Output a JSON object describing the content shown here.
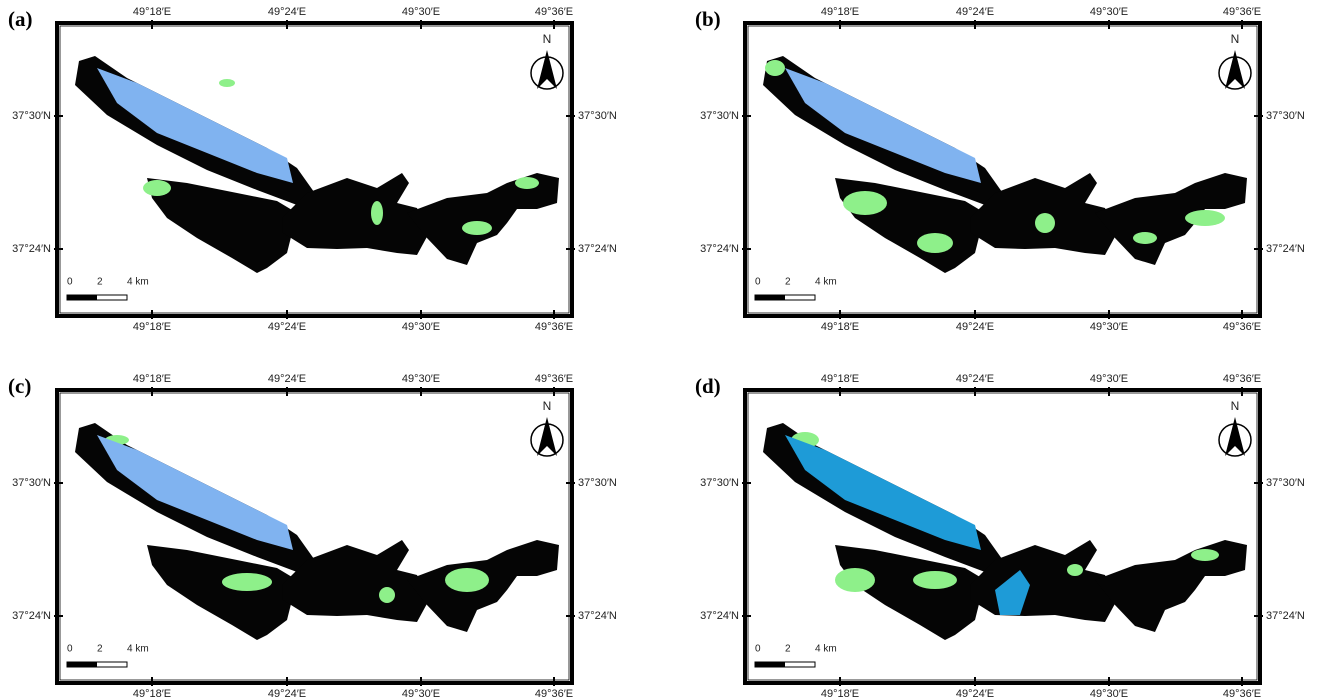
{
  "panels": [
    {
      "label": "(a)"
    },
    {
      "label": "(b)"
    },
    {
      "label": "(c)"
    },
    {
      "label": "(d)"
    }
  ],
  "longitude_labels": [
    "49°18′E",
    "49°24′E",
    "49°30′E",
    "49°36′E"
  ],
  "latitude_labels": [
    "37°30′N",
    "37°24′N"
  ],
  "north_label": "N",
  "scale_bar": {
    "labels": [
      "0",
      "2",
      "4 km"
    ]
  }
}
